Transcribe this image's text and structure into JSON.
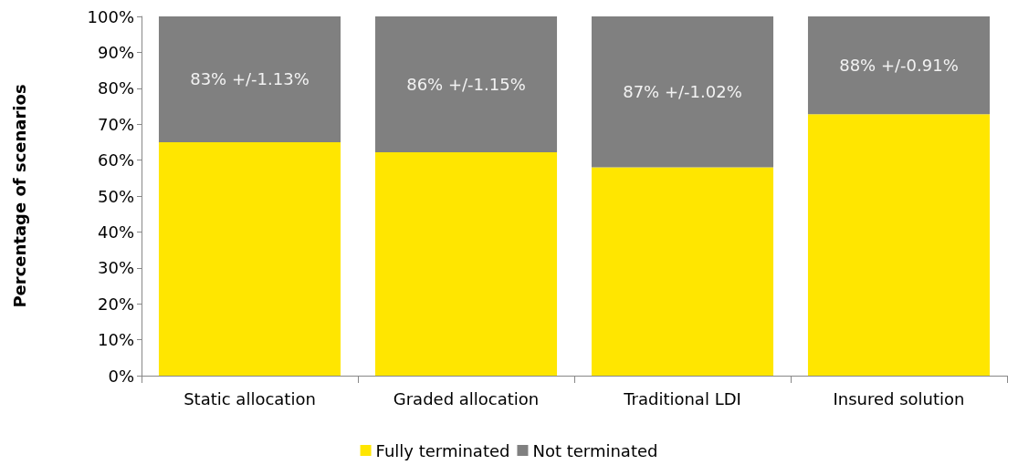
{
  "chart_data": {
    "type": "bar",
    "stacked": true,
    "ylabel": "Percentage of scenarios",
    "categories": [
      "Static allocation",
      "Graded allocation",
      "Traditional LDI",
      "Insured solution"
    ],
    "series": [
      {
        "name": "Fully terminated",
        "color": "#ffe600",
        "values": [
          65,
          62.2,
          58,
          72.8
        ]
      },
      {
        "name": "Not terminated",
        "color": "#808080",
        "values": [
          35,
          37.8,
          42,
          27.2
        ]
      }
    ],
    "ylim": [
      0,
      100
    ],
    "yticks": [
      {
        "value": 0,
        "label": "0%"
      },
      {
        "value": 10,
        "label": "10%"
      },
      {
        "value": 20,
        "label": "20%"
      },
      {
        "value": 30,
        "label": "30%"
      },
      {
        "value": 40,
        "label": "40%"
      },
      {
        "value": 50,
        "label": "50%"
      },
      {
        "value": 60,
        "label": "60%"
      },
      {
        "value": 70,
        "label": "70%"
      },
      {
        "value": 80,
        "label": "80%"
      },
      {
        "value": 90,
        "label": "90%"
      },
      {
        "value": 100,
        "label": "100%"
      }
    ],
    "annotations": [
      "83% +/-1.13%",
      "86% +/-1.15%",
      "87% +/-1.02%",
      "88% +/-0.91%"
    ],
    "grid": false,
    "legend": "bottom"
  }
}
